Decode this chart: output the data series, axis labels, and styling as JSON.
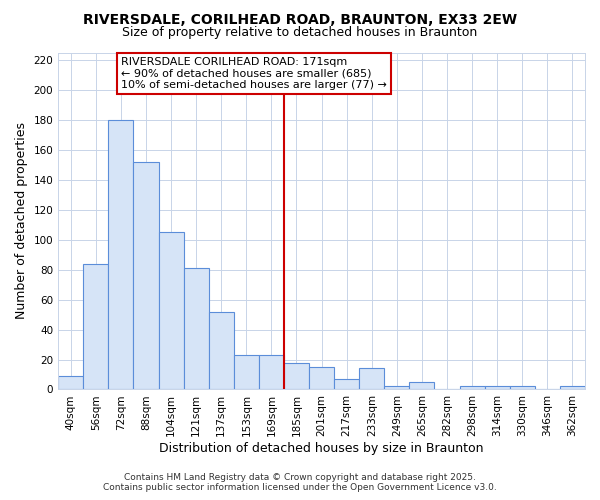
{
  "title": "RIVERSDALE, CORILHEAD ROAD, BRAUNTON, EX33 2EW",
  "subtitle": "Size of property relative to detached houses in Braunton",
  "xlabel": "Distribution of detached houses by size in Braunton",
  "ylabel": "Number of detached properties",
  "categories": [
    "40sqm",
    "56sqm",
    "72sqm",
    "88sqm",
    "104sqm",
    "121sqm",
    "137sqm",
    "153sqm",
    "169sqm",
    "185sqm",
    "201sqm",
    "217sqm",
    "233sqm",
    "249sqm",
    "265sqm",
    "282sqm",
    "298sqm",
    "314sqm",
    "330sqm",
    "346sqm",
    "362sqm"
  ],
  "values": [
    9,
    84,
    180,
    152,
    105,
    81,
    52,
    23,
    23,
    18,
    15,
    7,
    14,
    2,
    5,
    0,
    2,
    2,
    2,
    0,
    2
  ],
  "bar_color": "#d6e4f7",
  "bar_edge_color": "#5b8dd9",
  "ref_line_idx": 8.5,
  "ref_line_label": "RIVERSDALE CORILHEAD ROAD: 171sqm",
  "annotation_line1": "← 90% of detached houses are smaller (685)",
  "annotation_line2": "10% of semi-detached houses are larger (77) →",
  "annotation_box_color": "#ffffff",
  "annotation_box_edge_color": "#cc0000",
  "ref_line_color": "#cc0000",
  "ylim": [
    0,
    225
  ],
  "yticks": [
    0,
    20,
    40,
    60,
    80,
    100,
    120,
    140,
    160,
    180,
    200,
    220
  ],
  "footer_line1": "Contains HM Land Registry data © Crown copyright and database right 2025.",
  "footer_line2": "Contains public sector information licensed under the Open Government Licence v3.0.",
  "bg_color": "#ffffff",
  "plot_bg_color": "#ffffff",
  "grid_color": "#c8d4e8",
  "title_fontsize": 10,
  "subtitle_fontsize": 9,
  "axis_label_fontsize": 9,
  "tick_fontsize": 7.5,
  "footer_fontsize": 6.5,
  "annotation_fontsize": 8
}
